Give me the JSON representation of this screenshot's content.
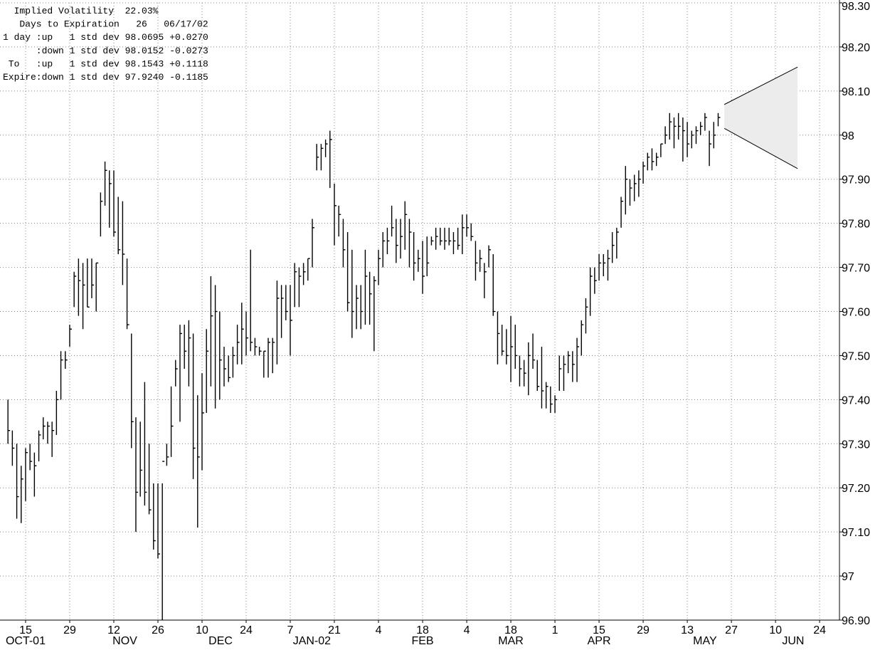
{
  "chart_data": {
    "type": "ohlc",
    "annotations": [
      {
        "text": "  Implied Volatility  22.03%"
      },
      {
        "text": "   Days to Expiration   26   06/17/02"
      },
      {
        "text": "1 day :up   1 std dev ",
        "price": {
          "value": 98.0695,
          "label": "98.0695"
        },
        "change": "+0.0270"
      },
      {
        "text": "      :down 1 std dev ",
        "price": {
          "value": 98.0152,
          "label": "98.0152"
        },
        "change": "-0.0273"
      },
      {
        "text": " To   :up   1 std dev ",
        "price": {
          "value": 98.1543,
          "label": "98.1543"
        },
        "change": "+0.1118"
      },
      {
        "text": "Expire:down 1 std dev ",
        "price": {
          "value": 97.924,
          "label": "97.9240"
        },
        "change": "-0.1185"
      }
    ],
    "high": [
      97.4,
      97.33,
      97.3,
      97.25,
      97.29,
      97.3,
      97.28,
      97.33,
      97.36,
      97.35,
      97.35,
      97.42,
      97.51,
      97.51,
      97.57,
      97.69,
      97.72,
      97.71,
      97.72,
      97.72,
      97.71,
      97.87,
      97.94,
      97.92,
      97.92,
      97.86,
      97.85,
      97.72,
      97.55,
      97.36,
      97.35,
      97.44,
      97.3,
      97.21,
      97.21,
      97.21,
      97.3,
      97.43,
      97.49,
      97.57,
      97.57,
      97.58,
      97.55,
      97.41,
      97.46,
      97.56,
      97.68,
      97.66,
      97.6,
      97.52,
      97.5,
      97.52,
      97.57,
      97.62,
      97.6,
      97.74,
      97.54,
      97.52,
      97.51,
      97.54,
      97.54,
      97.67,
      97.66,
      97.66,
      97.66,
      97.71,
      97.7,
      97.71,
      97.72,
      97.81,
      97.98,
      97.98,
      97.99,
      98.01,
      97.89,
      97.84,
      97.81,
      97.78,
      97.74,
      97.66,
      97.66,
      97.74,
      97.69,
      97.68,
      97.74,
      97.78,
      97.79,
      97.84,
      97.81,
      97.81,
      97.85,
      97.81,
      97.78,
      97.74,
      97.76,
      97.77,
      97.77,
      97.79,
      97.79,
      97.79,
      97.79,
      97.78,
      97.79,
      97.82,
      97.82,
      97.8,
      97.76,
      97.74,
      97.71,
      97.75,
      97.73,
      97.6,
      97.57,
      97.56,
      97.59,
      97.57,
      97.5,
      97.49,
      97.53,
      97.55,
      97.49,
      97.52,
      97.44,
      97.43,
      97.41,
      97.5,
      97.5,
      97.51,
      97.51,
      97.54,
      97.58,
      97.63,
      97.7,
      97.7,
      97.73,
      97.73,
      97.74,
      97.78,
      97.79,
      97.86,
      97.93,
      97.9,
      97.91,
      97.92,
      97.94,
      97.96,
      97.97,
      97.96,
      97.98,
      98.02,
      98.05,
      98.04,
      98.05,
      98.04,
      98.03,
      98.01,
      98.02,
      98.03,
      98.05,
      98.01,
      98.03,
      98.05
    ],
    "low": [
      97.3,
      97.25,
      97.13,
      97.12,
      97.17,
      97.24,
      97.18,
      97.26,
      97.31,
      97.3,
      97.27,
      97.32,
      97.4,
      97.47,
      97.52,
      97.61,
      97.59,
      97.56,
      97.61,
      97.63,
      97.6,
      97.77,
      97.84,
      97.79,
      97.77,
      97.73,
      97.66,
      97.56,
      97.29,
      97.1,
      97.18,
      97.16,
      97.14,
      97.06,
      97.04,
      96.9,
      97.25,
      97.27,
      97.43,
      97.35,
      97.47,
      97.43,
      97.22,
      97.11,
      97.24,
      97.37,
      97.43,
      97.38,
      97.4,
      97.43,
      97.44,
      97.45,
      97.48,
      97.48,
      97.5,
      97.51,
      97.5,
      97.5,
      97.45,
      97.45,
      97.46,
      97.48,
      97.54,
      97.58,
      97.5,
      97.61,
      97.61,
      97.66,
      97.67,
      97.7,
      97.92,
      97.92,
      97.95,
      97.88,
      97.75,
      97.77,
      97.7,
      97.6,
      97.54,
      97.56,
      97.56,
      97.57,
      97.57,
      97.51,
      97.66,
      97.7,
      97.73,
      97.77,
      97.71,
      97.72,
      97.74,
      97.7,
      97.67,
      97.69,
      97.64,
      97.68,
      97.75,
      97.74,
      97.75,
      97.74,
      97.75,
      97.73,
      97.74,
      97.73,
      97.77,
      97.76,
      97.67,
      97.69,
      97.63,
      97.7,
      97.59,
      97.48,
      97.5,
      97.48,
      97.44,
      97.47,
      97.43,
      97.43,
      97.41,
      97.47,
      97.42,
      97.38,
      97.38,
      97.37,
      97.37,
      97.42,
      97.42,
      97.46,
      97.44,
      97.44,
      97.5,
      97.55,
      97.59,
      97.64,
      97.67,
      97.68,
      97.67,
      97.71,
      97.72,
      97.79,
      97.82,
      97.84,
      97.85,
      97.86,
      97.89,
      97.92,
      97.92,
      97.93,
      97.95,
      97.98,
      97.99,
      97.97,
      97.99,
      97.94,
      97.95,
      97.97,
      97.98,
      98.0,
      98.01,
      97.93,
      97.97,
      98.02
    ],
    "close": [
      97.33,
      97.29,
      97.18,
      97.22,
      97.28,
      97.26,
      97.25,
      97.32,
      97.34,
      97.34,
      97.33,
      97.4,
      97.49,
      97.49,
      97.56,
      97.68,
      97.67,
      97.66,
      97.61,
      97.66,
      97.71,
      97.85,
      97.92,
      97.89,
      97.78,
      97.74,
      97.73,
      97.57,
      97.35,
      97.19,
      97.24,
      97.19,
      97.15,
      97.08,
      97.05,
      97.26,
      97.27,
      97.34,
      97.47,
      97.55,
      97.51,
      97.54,
      97.29,
      97.27,
      97.37,
      97.51,
      97.59,
      97.6,
      97.49,
      97.47,
      97.45,
      97.5,
      97.53,
      97.56,
      97.54,
      97.53,
      97.52,
      97.51,
      97.51,
      97.53,
      97.53,
      97.63,
      97.63,
      97.6,
      97.58,
      97.69,
      97.68,
      97.69,
      97.72,
      97.79,
      97.95,
      97.97,
      97.98,
      97.99,
      97.84,
      97.82,
      97.74,
      97.62,
      97.6,
      97.63,
      97.6,
      97.68,
      97.64,
      97.67,
      97.72,
      97.76,
      97.76,
      97.79,
      97.75,
      97.77,
      97.82,
      97.78,
      97.71,
      97.72,
      97.68,
      97.71,
      97.76,
      97.77,
      97.76,
      97.76,
      97.76,
      97.76,
      97.75,
      97.79,
      97.79,
      97.77,
      97.71,
      97.72,
      97.69,
      97.74,
      97.6,
      97.55,
      97.51,
      97.5,
      97.52,
      97.5,
      97.47,
      97.46,
      97.5,
      97.49,
      97.43,
      97.42,
      97.43,
      97.39,
      97.4,
      97.47,
      97.48,
      97.5,
      97.48,
      97.52,
      97.57,
      97.61,
      97.68,
      97.67,
      97.71,
      97.71,
      97.72,
      97.75,
      97.78,
      97.85,
      97.9,
      97.88,
      97.89,
      97.9,
      97.93,
      97.95,
      97.94,
      97.95,
      97.98,
      98.0,
      98.03,
      98.02,
      98.02,
      98.01,
      97.98,
      98.0,
      98.01,
      98.02,
      98.04,
      97.98,
      98.0,
      98.04
    ],
    "ylim": [
      96.9,
      98.3
    ],
    "yticks": [
      {
        "value": 96.9,
        "label": "96.90"
      },
      97,
      {
        "value": 97.1,
        "label": "97.10"
      },
      {
        "value": 97.2,
        "label": "97.20"
      },
      {
        "value": 97.3,
        "label": "97.30"
      },
      {
        "value": 97.4,
        "label": "97.40"
      },
      {
        "value": 97.5,
        "label": "97.50"
      },
      {
        "value": 97.6,
        "label": "97.60"
      },
      {
        "value": 97.7,
        "label": "97.70"
      },
      {
        "value": 97.8,
        "label": "97.80"
      },
      {
        "value": 97.9,
        "label": "97.90"
      },
      98,
      {
        "value": 98.1,
        "label": "98.10"
      },
      {
        "value": 98.2,
        "label": "98.20"
      },
      {
        "value": 98.3,
        "label": "98.30"
      }
    ],
    "xlim": [
      -1.8,
      188.5
    ],
    "xticks": [
      {
        "value": 4,
        "label": "15"
      },
      {
        "value": 14,
        "label": "29"
      },
      {
        "value": 24,
        "label": "12"
      },
      {
        "value": 34,
        "label": "26"
      },
      {
        "value": 44,
        "label": "10"
      },
      {
        "value": 54,
        "label": "24"
      },
      {
        "value": 64,
        "label": "7"
      },
      {
        "value": 74,
        "label": "21"
      },
      {
        "value": 84,
        "label": "4"
      },
      {
        "value": 94,
        "label": "18"
      },
      {
        "value": 104,
        "label": "4"
      },
      {
        "value": 114,
        "label": "18"
      },
      {
        "value": 124,
        "label": "1"
      },
      {
        "value": 134,
        "label": "15"
      },
      {
        "value": 144,
        "label": "29"
      },
      {
        "value": 154,
        "label": "13"
      },
      {
        "value": 164,
        "label": "27"
      },
      {
        "value": 174,
        "label": "10"
      },
      {
        "value": 184,
        "label": "24"
      }
    ],
    "month_labels": [
      {
        "value": 4,
        "label": "OCT-01"
      },
      {
        "value": 26.5,
        "label": "NOV"
      },
      {
        "value": 48.2,
        "label": "DEC"
      },
      {
        "value": 68.9,
        "label": "JAN-02"
      },
      {
        "value": 94,
        "label": "FEB"
      },
      {
        "value": 114,
        "label": "MAR"
      },
      {
        "value": 134,
        "label": "APR"
      },
      {
        "value": 158,
        "label": "MAY"
      },
      {
        "value": 178,
        "label": "JUN"
      }
    ],
    "grid": true,
    "color": "#000000",
    "cone_color": "#ececec"
  }
}
